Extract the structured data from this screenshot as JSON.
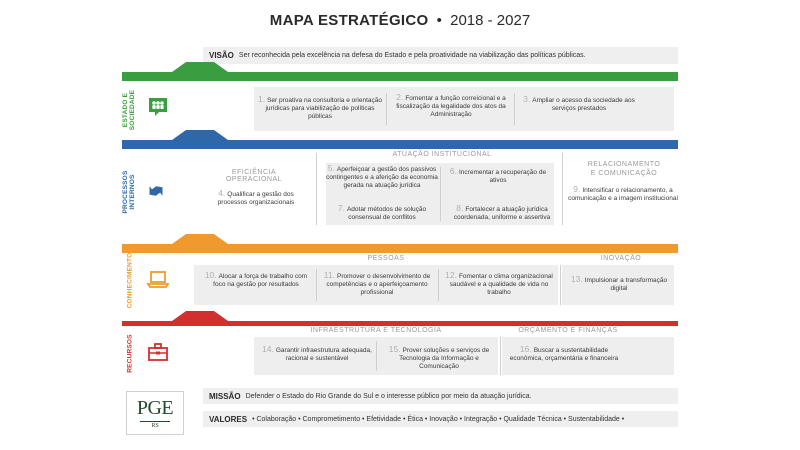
{
  "header": {
    "title_bold": "MAPA ESTRATÉGICO",
    "separator": "•",
    "period": "2018 - 2027"
  },
  "visao": {
    "label": "VISÃO",
    "text": "Ser reconhecida pela excelência na defesa do Estado e pela proatividade na viabilização das políticas públicas."
  },
  "colors": {
    "green": "#3a9d3f",
    "blue": "#2f68a8",
    "orange": "#ef9a2e",
    "red": "#d32f2f",
    "logo_green": "#1f4a2c"
  },
  "estado": {
    "label_line1": "ESTADO E",
    "label_line2": "SOCIEDADE",
    "icon": "people-speech-icon",
    "items": [
      {
        "num": "1.",
        "text": "Ser proativa na consultoria e orientação jurídicas para viabilização de políticas públicas"
      },
      {
        "num": "2.",
        "text": "Fomentar a função correicional e a fiscalização da legalidade dos atos da Administração"
      },
      {
        "num": "3.",
        "text": "Ampliar o acesso da sociedade aos serviços prestados"
      }
    ]
  },
  "processos": {
    "label_line1": "PROCESSOS",
    "label_line2": "INTERNOS",
    "icon": "refresh-arrows-icon",
    "cat_left": "EFICIÊNCIA OPERACIONAL",
    "cat_mid": "ATUAÇÃO INSTITUCIONAL",
    "cat_right_line1": "RELACIONAMENTO",
    "cat_right_line2": "E COMUNICAÇÃO",
    "items": [
      {
        "num": "4.",
        "text": "Qualificar a gestão dos processos organizacionais"
      },
      {
        "num": "5.",
        "text": "Aperfeiçoar a gestão dos passivos contingentes e a aferição da economia gerada na atuação jurídica"
      },
      {
        "num": "6.",
        "text": "Incrementar a recuperação de ativos"
      },
      {
        "num": "7.",
        "text": "Adotar métodos de solução consensual de conflitos"
      },
      {
        "num": "8.",
        "text": "Fortalecer a atuação jurídica coordenada, uniforme e assertiva"
      },
      {
        "num": "9.",
        "text": "Intensificar o relacionamento, a comunicação e a imagem institucional"
      }
    ]
  },
  "conhecimento": {
    "label": "CONHECIMENTO",
    "icon": "laptop-icon",
    "cat_mid": "PESSOAS",
    "cat_right": "INOVAÇÃO",
    "items": [
      {
        "num": "10.",
        "text": "Alocar a força de trabalho com foco na gestão por resultados"
      },
      {
        "num": "11.",
        "text": "Promover o desenvolvimento de competências e o aperfeiçoamento profissional"
      },
      {
        "num": "12.",
        "text": "Fomentar o clima organizacional saudável e a qualidade de vida no trabalho"
      },
      {
        "num": "13.",
        "text": "Impulsionar a transformação digital"
      }
    ]
  },
  "recursos": {
    "label": "RECURSOS",
    "icon": "toolbox-icon",
    "cat_left": "INFRAESTRUTURA E TECNOLOGIA",
    "cat_right": "ORÇAMENTO E FINANÇAS",
    "items": [
      {
        "num": "14.",
        "text": "Garantir infraestrutura adequada, racional e sustentável"
      },
      {
        "num": "15.",
        "text": "Prover soluções e serviços de Tecnologia da Informação e Comunicação"
      },
      {
        "num": "16.",
        "text": "Buscar a sustentabilidade econômica, orçamentária e financeira"
      }
    ]
  },
  "missao": {
    "label": "MISSÃO",
    "text": "Defender o Estado do Rio Grande do Sul e o interesse público por meio da atuação jurídica."
  },
  "valores": {
    "label": "VALORES",
    "text": "• Colaboração • Comprometimento • Efetividade • Ética • Inovação • Integração • Qualidade Técnica • Sustentabilidade •"
  },
  "logo": {
    "big": "PGE",
    "small": "RS"
  }
}
